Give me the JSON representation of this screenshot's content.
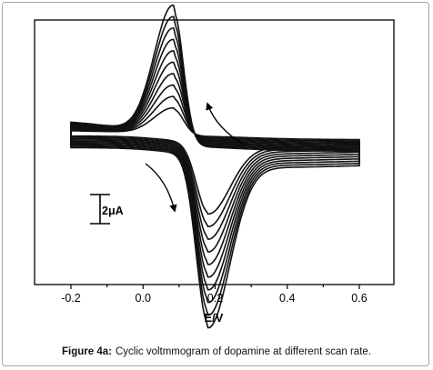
{
  "caption": {
    "label": "Figure 4a:",
    "text": "Cyclic voltmmogram of dopamine at different scan rate."
  },
  "scale_bar": {
    "label": "2μA",
    "value_uA": 2
  },
  "chart_data": {
    "type": "line",
    "xlabel": "E/V",
    "ylabel": "",
    "xlim": [
      -0.31,
      0.72
    ],
    "x_ticks": [
      -0.2,
      0.0,
      0.2,
      0.4,
      0.6
    ],
    "x_tick_labels": [
      "-0.2",
      "0.0",
      "0.2",
      "0.4",
      "0.6"
    ],
    "y_axis_labeled": false,
    "grid": false,
    "legend": "none",
    "curve_color": "#111111",
    "series_count": 10,
    "sweep": {
      "start_V": -0.2,
      "vertex_V": 0.6,
      "end_V": -0.2
    },
    "anodic_peak": {
      "potential_V": 0.085,
      "current_uA_range": [
        1.7,
        8.2
      ]
    },
    "cathodic_peak": {
      "potential_V": 0.18,
      "current_uA_range": [
        -4.8,
        -11.6
      ]
    },
    "baseline_current_uA": [
      -0.1,
      -0.9
    ],
    "annotations": [
      {
        "type": "arrow",
        "meaning": "anodic scan direction (toward negative potential)",
        "near_V": 0.17
      },
      {
        "type": "arrow",
        "meaning": "cathodic scan direction",
        "near_V": 0.0
      }
    ]
  }
}
